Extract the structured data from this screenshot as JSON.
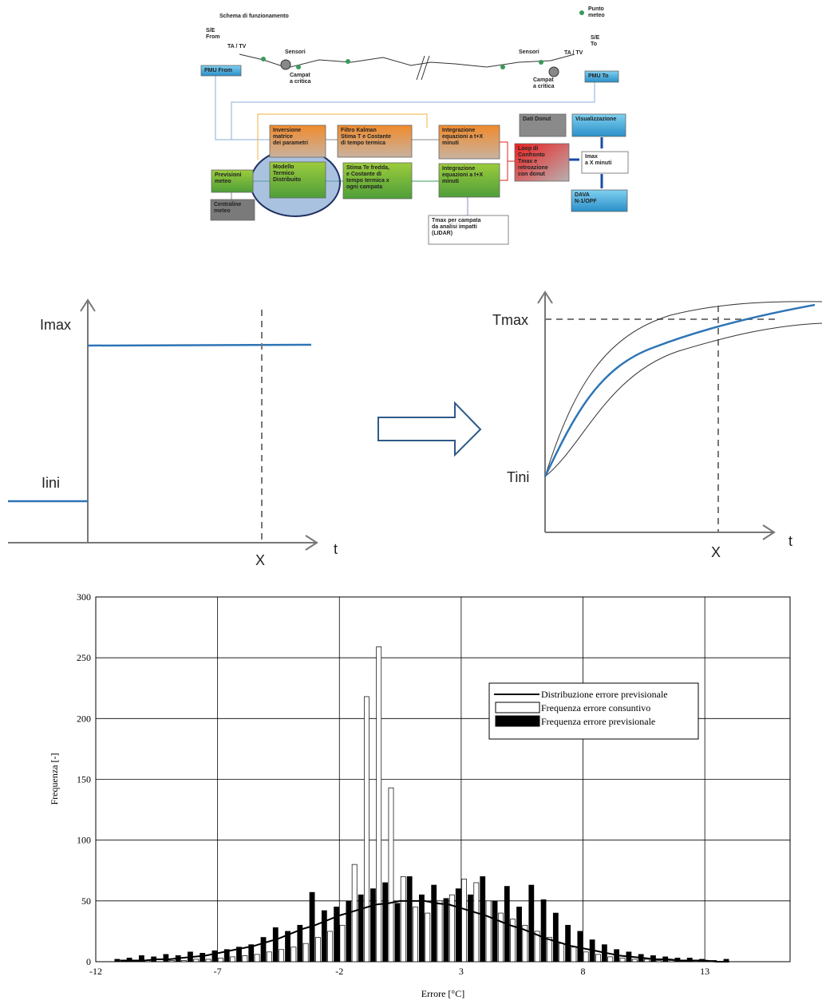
{
  "diagram": {
    "title": "Schema di funzionamento",
    "labels": [
      [
        "Punto",
        "meteo"
      ],
      [
        "S/E",
        "From"
      ],
      [
        "TA / TV"
      ],
      [
        "Sensori"
      ],
      [
        "Campat",
        "a critica"
      ],
      [
        "Sensori"
      ],
      [
        "S/E",
        "To"
      ],
      [
        "TA / TV"
      ],
      [
        "Campat",
        "a critica"
      ]
    ],
    "boxes": [
      [
        "PMU From"
      ],
      [
        "PMU To"
      ],
      [
        "Inversione",
        "matrice",
        "dei parametri"
      ],
      [
        "Filtro Kalman",
        "Stima T e Costante",
        "di tempo termica"
      ],
      [
        "Integrazione",
        "equazioni a t+X",
        "minuti"
      ],
      [
        "Previsioni",
        "meteo"
      ],
      [
        "Modello",
        "Termico",
        "Distribuito"
      ],
      [
        "Stima Te fredda,",
        "e Costante di",
        "tempo termica x",
        "ogni campata"
      ],
      [
        "Integrazione",
        "equazioni a t+X",
        "minuti"
      ],
      [
        "Centraline",
        "meteo"
      ],
      [
        "Dati Donut"
      ],
      [
        "Loop di",
        "Confronto",
        "Tmax e",
        "retroazione",
        "con donut"
      ],
      [
        "Visualizzazione"
      ],
      [
        "Imax",
        "a X minuti"
      ],
      [
        "DAVA",
        "N-1/OPF"
      ],
      [
        "Tmax per campata",
        "da analisi impatti",
        "(LIDAR)"
      ]
    ]
  },
  "concept": {
    "left": {
      "upper": "Imax",
      "lower": "Iini",
      "mark": "X",
      "axis": "t"
    },
    "right": {
      "upper": "Tmax",
      "lower": "Tini",
      "mark": "X",
      "axis": "t"
    }
  },
  "chart_data": {
    "type": "bar",
    "x_label": "Errore [°C]",
    "y_label": "Frequenza [-]",
    "xlim": [
      -12,
      16.5
    ],
    "ylim": [
      0,
      300
    ],
    "xticks": [
      -12,
      -7,
      -2,
      3,
      8,
      13
    ],
    "yticks": [
      0,
      50,
      100,
      150,
      200,
      250,
      300
    ],
    "grid": true,
    "x": [
      -11,
      -10.5,
      -10,
      -9.5,
      -9,
      -8.5,
      -8,
      -7.5,
      -7,
      -6.5,
      -6,
      -5.5,
      -5,
      -4.5,
      -4,
      -3.5,
      -3,
      -2.5,
      -2,
      -1.5,
      -1,
      -0.5,
      0,
      0.5,
      1,
      1.5,
      2,
      2.5,
      3,
      3.5,
      4,
      4.5,
      5,
      5.5,
      6,
      6.5,
      7,
      7.5,
      8,
      8.5,
      9,
      9.5,
      10,
      10.5,
      11,
      11.5,
      12,
      12.5,
      13,
      13.5,
      14
    ],
    "series": [
      {
        "name": "Distribuzione errore previsionale",
        "color": "#000000",
        "kind": "line",
        "values": [
          1,
          1,
          1,
          2,
          2,
          3,
          4,
          5,
          7,
          9,
          11,
          13,
          16,
          19,
          23,
          27,
          30,
          34,
          38,
          41,
          44,
          47,
          48,
          50,
          50,
          50,
          48,
          47,
          44,
          41,
          38,
          34,
          30,
          27,
          23,
          19,
          16,
          13,
          11,
          9,
          7,
          5,
          4,
          3,
          2,
          2,
          1,
          1,
          1,
          0,
          0
        ]
      },
      {
        "name": "Frequenza errore consuntivo",
        "color": "#ffffff",
        "kind": "bar",
        "values": [
          0,
          0,
          1,
          0,
          1,
          1,
          2,
          2,
          3,
          4,
          5,
          6,
          8,
          10,
          12,
          15,
          20,
          25,
          30,
          80,
          218,
          259,
          143,
          70,
          45,
          40,
          50,
          55,
          68,
          65,
          50,
          40,
          35,
          30,
          25,
          20,
          15,
          12,
          8,
          6,
          4,
          3,
          2,
          2,
          1,
          1,
          0,
          1,
          0,
          0,
          0
        ]
      },
      {
        "name": "Frequenza errore previsionale",
        "color": "#000000",
        "kind": "bar",
        "values": [
          2,
          3,
          5,
          4,
          6,
          5,
          8,
          7,
          9,
          10,
          12,
          14,
          20,
          28,
          25,
          30,
          57,
          42,
          45,
          50,
          55,
          60,
          65,
          48,
          70,
          55,
          63,
          52,
          60,
          55,
          70,
          50,
          62,
          45,
          63,
          51,
          40,
          30,
          25,
          18,
          14,
          10,
          8,
          6,
          5,
          4,
          3,
          3,
          2,
          1,
          2
        ]
      }
    ]
  }
}
